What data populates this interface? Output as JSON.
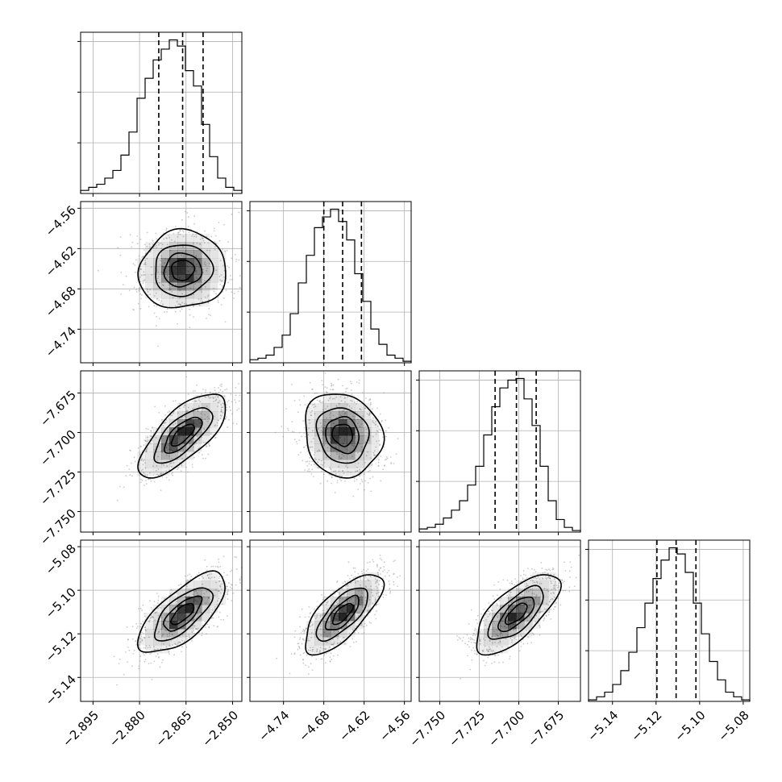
{
  "chart_data": {
    "type": "corner",
    "title": "",
    "parameters": [
      {
        "index": 0,
        "label": "",
        "range": [
          -2.899,
          -2.847
        ],
        "ticks": [
          -2.895,
          -2.88,
          -2.865,
          -2.85
        ],
        "tick_labels": [
          "−2.895",
          "−2.880",
          "−2.865",
          "−2.850"
        ],
        "quantiles": [
          -2.8738,
          -2.8661,
          -2.8595
        ],
        "mean": -2.8661,
        "sd": 0.0068
      },
      {
        "index": 1,
        "label": "",
        "range": [
          -4.79,
          -4.55
        ],
        "ticks": [
          -4.74,
          -4.68,
          -4.62,
          -4.56
        ],
        "tick_labels": [
          "−4.74",
          "−4.68",
          "−4.62",
          "−4.56"
        ],
        "quantiles": [
          -4.68,
          -4.652,
          -4.624
        ],
        "mean": -4.652,
        "sd": 0.028
      },
      {
        "index": 2,
        "label": "",
        "range": [
          -7.763,
          -7.661
        ],
        "ticks": [
          -7.75,
          -7.725,
          -7.7,
          -7.675
        ],
        "tick_labels": [
          "−7.750",
          "−7.725",
          "−7.700",
          "−7.675"
        ],
        "quantiles": [
          -7.715,
          -7.7015,
          -7.689
        ],
        "mean": -7.7015,
        "sd": 0.0128
      },
      {
        "index": 3,
        "label": "",
        "range": [
          -5.151,
          -5.077
        ],
        "ticks": [
          -5.14,
          -5.12,
          -5.1,
          -5.08
        ],
        "tick_labels": [
          "−5.14",
          "−5.12",
          "−5.10",
          "−5.08"
        ],
        "quantiles": [
          -5.1196,
          -5.1108,
          -5.1017
        ],
        "mean": -5.1108,
        "sd": 0.0089
      }
    ],
    "histograms": [
      {
        "param": 0,
        "bins": 20,
        "counts": [
          2,
          4,
          6,
          10,
          15,
          25,
          40,
          62,
          75,
          87,
          94,
          100,
          96,
          80,
          70,
          45,
          24,
          10,
          4,
          2
        ]
      },
      {
        "param": 1,
        "bins": 20,
        "counts": [
          2,
          3,
          5,
          10,
          18,
          32,
          52,
          70,
          88,
          95,
          100,
          92,
          80,
          58,
          40,
          22,
          12,
          5,
          3,
          1
        ]
      },
      {
        "param": 2,
        "bins": 20,
        "counts": [
          2,
          3,
          5,
          9,
          14,
          20,
          30,
          42,
          62,
          80,
          92,
          97,
          98,
          85,
          68,
          42,
          20,
          8,
          3,
          1
        ]
      },
      {
        "param": 3,
        "bins": 20,
        "counts": [
          1,
          3,
          6,
          11,
          20,
          32,
          48,
          64,
          80,
          92,
          100,
          96,
          84,
          64,
          44,
          26,
          14,
          6,
          3,
          1
        ]
      }
    ],
    "pairs": [
      {
        "x": 0,
        "y": 1,
        "correlation": 0.05
      },
      {
        "x": 0,
        "y": 2,
        "correlation": 0.72
      },
      {
        "x": 1,
        "y": 2,
        "correlation": -0.12
      },
      {
        "x": 0,
        "y": 3,
        "correlation": 0.7
      },
      {
        "x": 1,
        "y": 3,
        "correlation": 0.72
      },
      {
        "x": 2,
        "y": 3,
        "correlation": 0.7
      }
    ],
    "contour_levels_sigma": [
      0.5,
      1.0,
      1.5,
      2.0
    ],
    "quantile_probs": [
      0.16,
      0.5,
      0.84
    ],
    "grid": true,
    "colors": {
      "points": "#8c8c8c",
      "density": "#000000",
      "lines": "#000000",
      "grid": "#b0b0b0"
    }
  }
}
